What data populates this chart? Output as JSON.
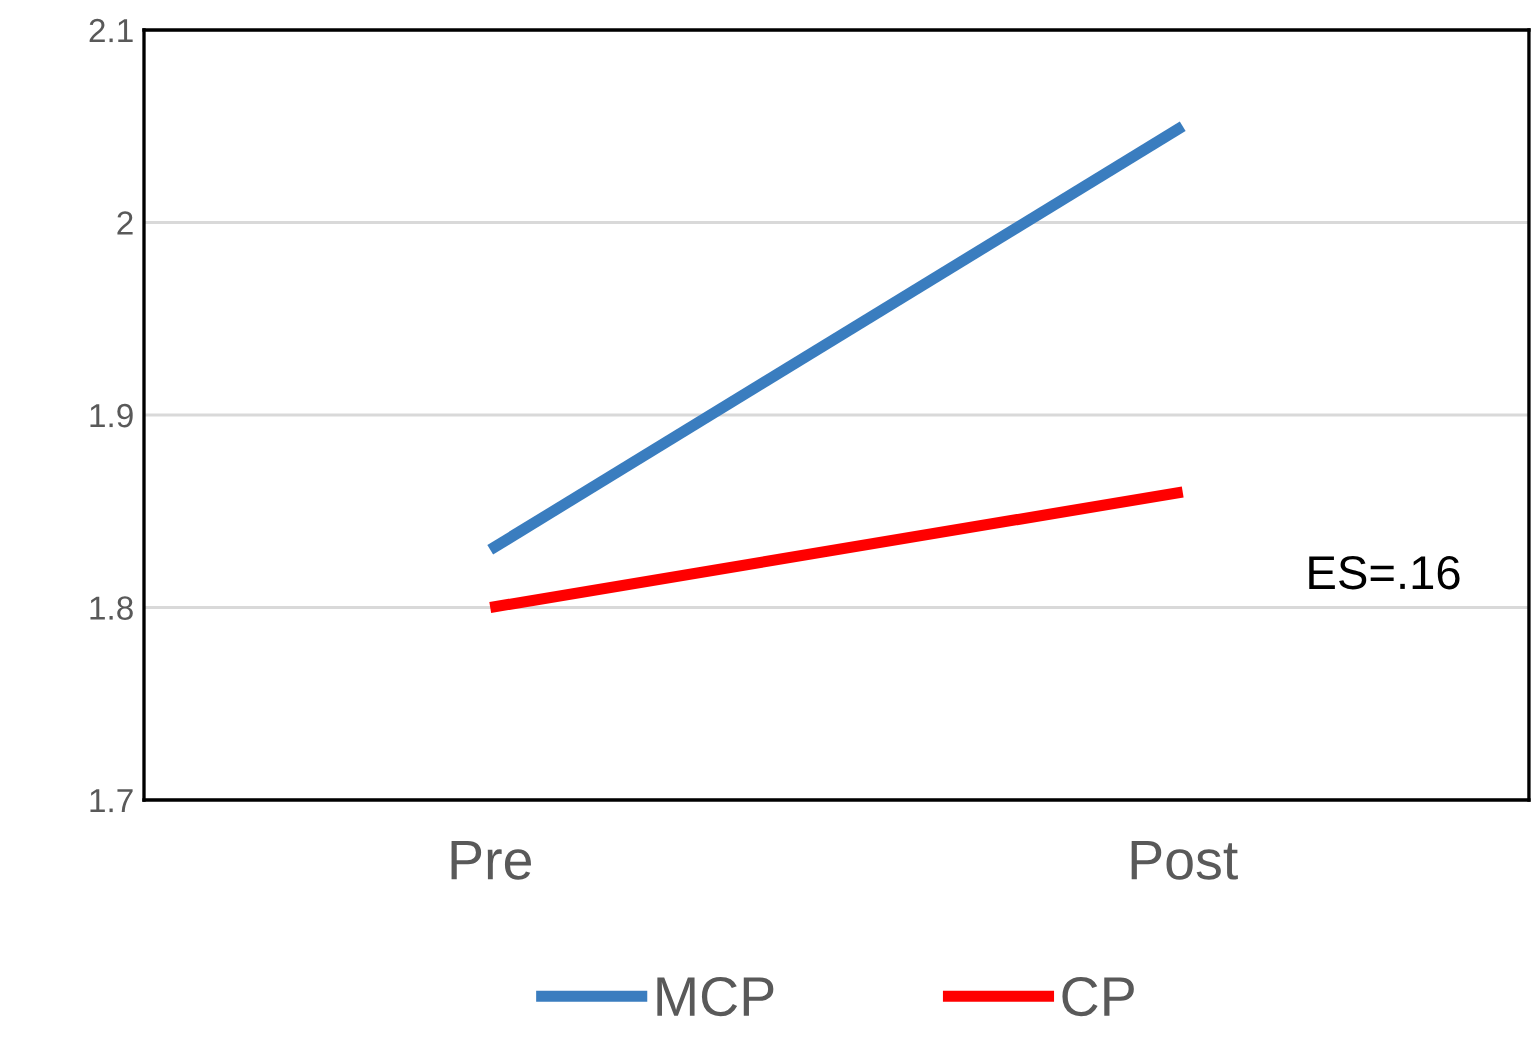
{
  "chart_data": {
    "type": "line",
    "categories": [
      "Pre",
      "Post"
    ],
    "series": [
      {
        "name": "MCP",
        "color": "#3a7dbf",
        "values": [
          1.83,
          2.05
        ]
      },
      {
        "name": "CP",
        "color": "#ff0000",
        "values": [
          1.8,
          1.86
        ]
      }
    ],
    "ylim": [
      1.7,
      2.1
    ],
    "yticks": [
      1.7,
      1.8,
      1.9,
      2,
      2.1
    ],
    "grid": "y",
    "legend": "bottom",
    "marker": "none",
    "line_style": "solid",
    "annotations": [
      "ES=.16"
    ]
  }
}
